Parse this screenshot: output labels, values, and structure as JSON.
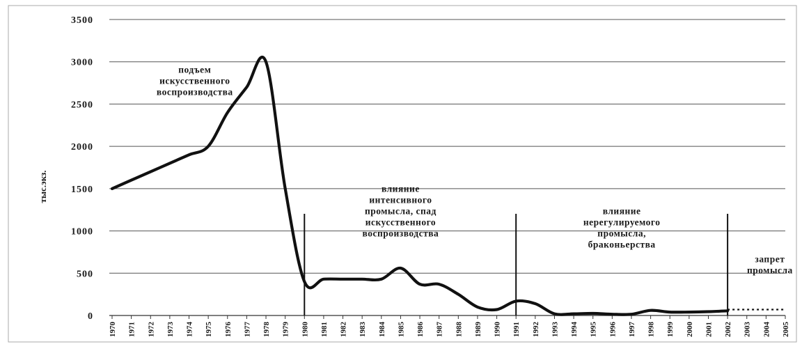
{
  "chart_data": {
    "type": "line",
    "ylabel": "тыс.экз.",
    "ylim": [
      0,
      3500
    ],
    "yticks": [
      0,
      500,
      1000,
      1500,
      2000,
      2500,
      3000,
      3500
    ],
    "ytick_labels": [
      "0",
      "500",
      "1000",
      "1500",
      "2000",
      "2500",
      "3000",
      "3500"
    ],
    "x": [
      1970,
      1971,
      1972,
      1973,
      1974,
      1975,
      1976,
      1977,
      1978,
      1979,
      1980,
      1981,
      1982,
      1983,
      1984,
      1985,
      1986,
      1987,
      1988,
      1989,
      1990,
      1991,
      1992,
      1993,
      1994,
      1995,
      1996,
      1997,
      1998,
      1999,
      2000,
      2001,
      2002
    ],
    "xtick_labels": [
      "1970",
      "1971",
      "1972",
      "1973",
      "1974",
      "1975",
      "1976",
      "1977",
      "1978",
      "1979",
      "1980",
      "1981",
      "1982",
      "1983",
      "1984",
      "1985",
      "1986",
      "1987",
      "1988",
      "1989",
      "1990",
      "1991",
      "1992",
      "1993",
      "1994",
      "1995",
      "1996",
      "1997",
      "1998",
      "1999",
      "2000",
      "2001",
      "2002",
      "2003",
      "2004",
      "2005"
    ],
    "series": [
      {
        "values": [
          1500,
          1600,
          1700,
          1800,
          1900,
          2000,
          2400,
          2700,
          3000,
          1500,
          400,
          430,
          430,
          430,
          430,
          560,
          370,
          370,
          250,
          100,
          70,
          170,
          140,
          20,
          20,
          25,
          15,
          15,
          60,
          40,
          40,
          45,
          55
        ],
        "color": "#111111"
      }
    ],
    "dotted_extension": {
      "x": [
        2002,
        2003,
        2004,
        2005
      ],
      "values": [
        70,
        70,
        70,
        70
      ]
    },
    "vertical_markers": [
      1980,
      1991,
      2002
    ],
    "annotations": [
      {
        "lines": [
          "подъем",
          "искусственного",
          "воспроизводства"
        ],
        "x": 1974.3,
        "y": 2870
      },
      {
        "lines": [
          "влияние",
          "интенсивного",
          "промысла, спад",
          "искусственного",
          "воспроизводства"
        ],
        "x": 1985.0,
        "y": 1460
      },
      {
        "lines": [
          "влияние",
          "нерегулируемого",
          "промысла,",
          "браконьерства"
        ],
        "x": 1996.5,
        "y": 1200
      },
      {
        "lines": [
          "запрет",
          "промысла"
        ],
        "x": 2004.2,
        "y": 630
      }
    ],
    "grid": true,
    "colors": {
      "line": "#111111",
      "grid": "#555555"
    }
  }
}
